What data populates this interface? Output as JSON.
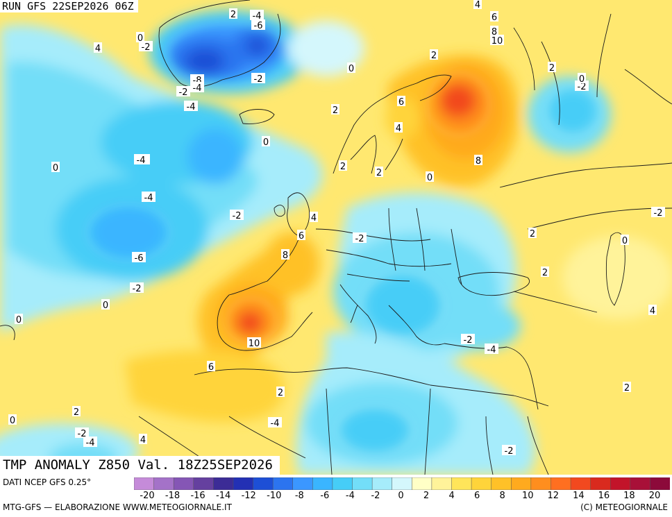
{
  "header": {
    "run_label": "RUN GFS 22SEP2026 06Z",
    "map_title": "TMP ANOMALY Z850 Val. 18Z25SEP2026"
  },
  "legend": {
    "source": "DATI NCEP GFS 0.25°",
    "tick_labels": [
      "-20",
      "-18",
      "-16",
      "-14",
      "-12",
      "-10",
      "-8",
      "-6",
      "-4",
      "-2",
      "0",
      "2",
      "4",
      "6",
      "8",
      "10",
      "12",
      "14",
      "16",
      "18",
      "20"
    ],
    "colors": [
      "#c58bd9",
      "#a472c8",
      "#8556b5",
      "#65409f",
      "#3c2c96",
      "#2330b4",
      "#1d4fd6",
      "#2c74ef",
      "#3b97ff",
      "#3ab5ff",
      "#46cdf7",
      "#73def8",
      "#a6ecfb",
      "#d4f7fc",
      "#ffffc6",
      "#fff39a",
      "#ffe55a",
      "#ffd43a",
      "#ffc128",
      "#ffaa1e",
      "#ff8e1e",
      "#ff6f20",
      "#f2491f",
      "#d92a1e",
      "#c2142a",
      "#a81038",
      "#8c0a3a"
    ]
  },
  "footer": {
    "left": "MTG-GFS — ELABORAZIONE WWW.METEOGIORNALE.IT",
    "right": "(C) METEOGIORNALE"
  },
  "map": {
    "contour_labels": [
      {
        "text": "-4"
      },
      {
        "text": "-6"
      },
      {
        "text": "2"
      },
      {
        "text": "4"
      },
      {
        "text": "0"
      },
      {
        "text": "-2"
      },
      {
        "text": "-8"
      },
      {
        "text": "-2"
      },
      {
        "text": "-4"
      },
      {
        "text": "-4"
      },
      {
        "text": "-2"
      },
      {
        "text": "0"
      },
      {
        "text": "-4"
      },
      {
        "text": "0"
      },
      {
        "text": "-4"
      },
      {
        "text": "-6"
      },
      {
        "text": "-2"
      },
      {
        "text": "-2"
      },
      {
        "text": "0"
      },
      {
        "text": "0"
      },
      {
        "text": "2"
      },
      {
        "text": "0"
      },
      {
        "text": "2"
      },
      {
        "text": "6"
      },
      {
        "text": "4"
      },
      {
        "text": "2"
      },
      {
        "text": "2"
      },
      {
        "text": "4"
      },
      {
        "text": "6"
      },
      {
        "text": "8"
      },
      {
        "text": "-2"
      },
      {
        "text": "-4"
      },
      {
        "text": "10"
      },
      {
        "text": "6"
      },
      {
        "text": "2"
      },
      {
        "text": "0"
      },
      {
        "text": "-4"
      },
      {
        "text": "4"
      },
      {
        "text": "6"
      },
      {
        "text": "8"
      },
      {
        "text": "10"
      },
      {
        "text": "2"
      },
      {
        "text": "8"
      },
      {
        "text": "0"
      },
      {
        "text": "-2"
      },
      {
        "text": "2"
      },
      {
        "text": "-2"
      },
      {
        "text": "0"
      },
      {
        "text": "2"
      },
      {
        "text": "4"
      },
      {
        "text": "-2"
      },
      {
        "text": "-4"
      },
      {
        "text": "2"
      },
      {
        "text": "0"
      },
      {
        "text": "-2"
      },
      {
        "text": "2"
      },
      {
        "text": "-2"
      },
      {
        "text": "-4"
      },
      {
        "text": "4"
      }
    ]
  }
}
